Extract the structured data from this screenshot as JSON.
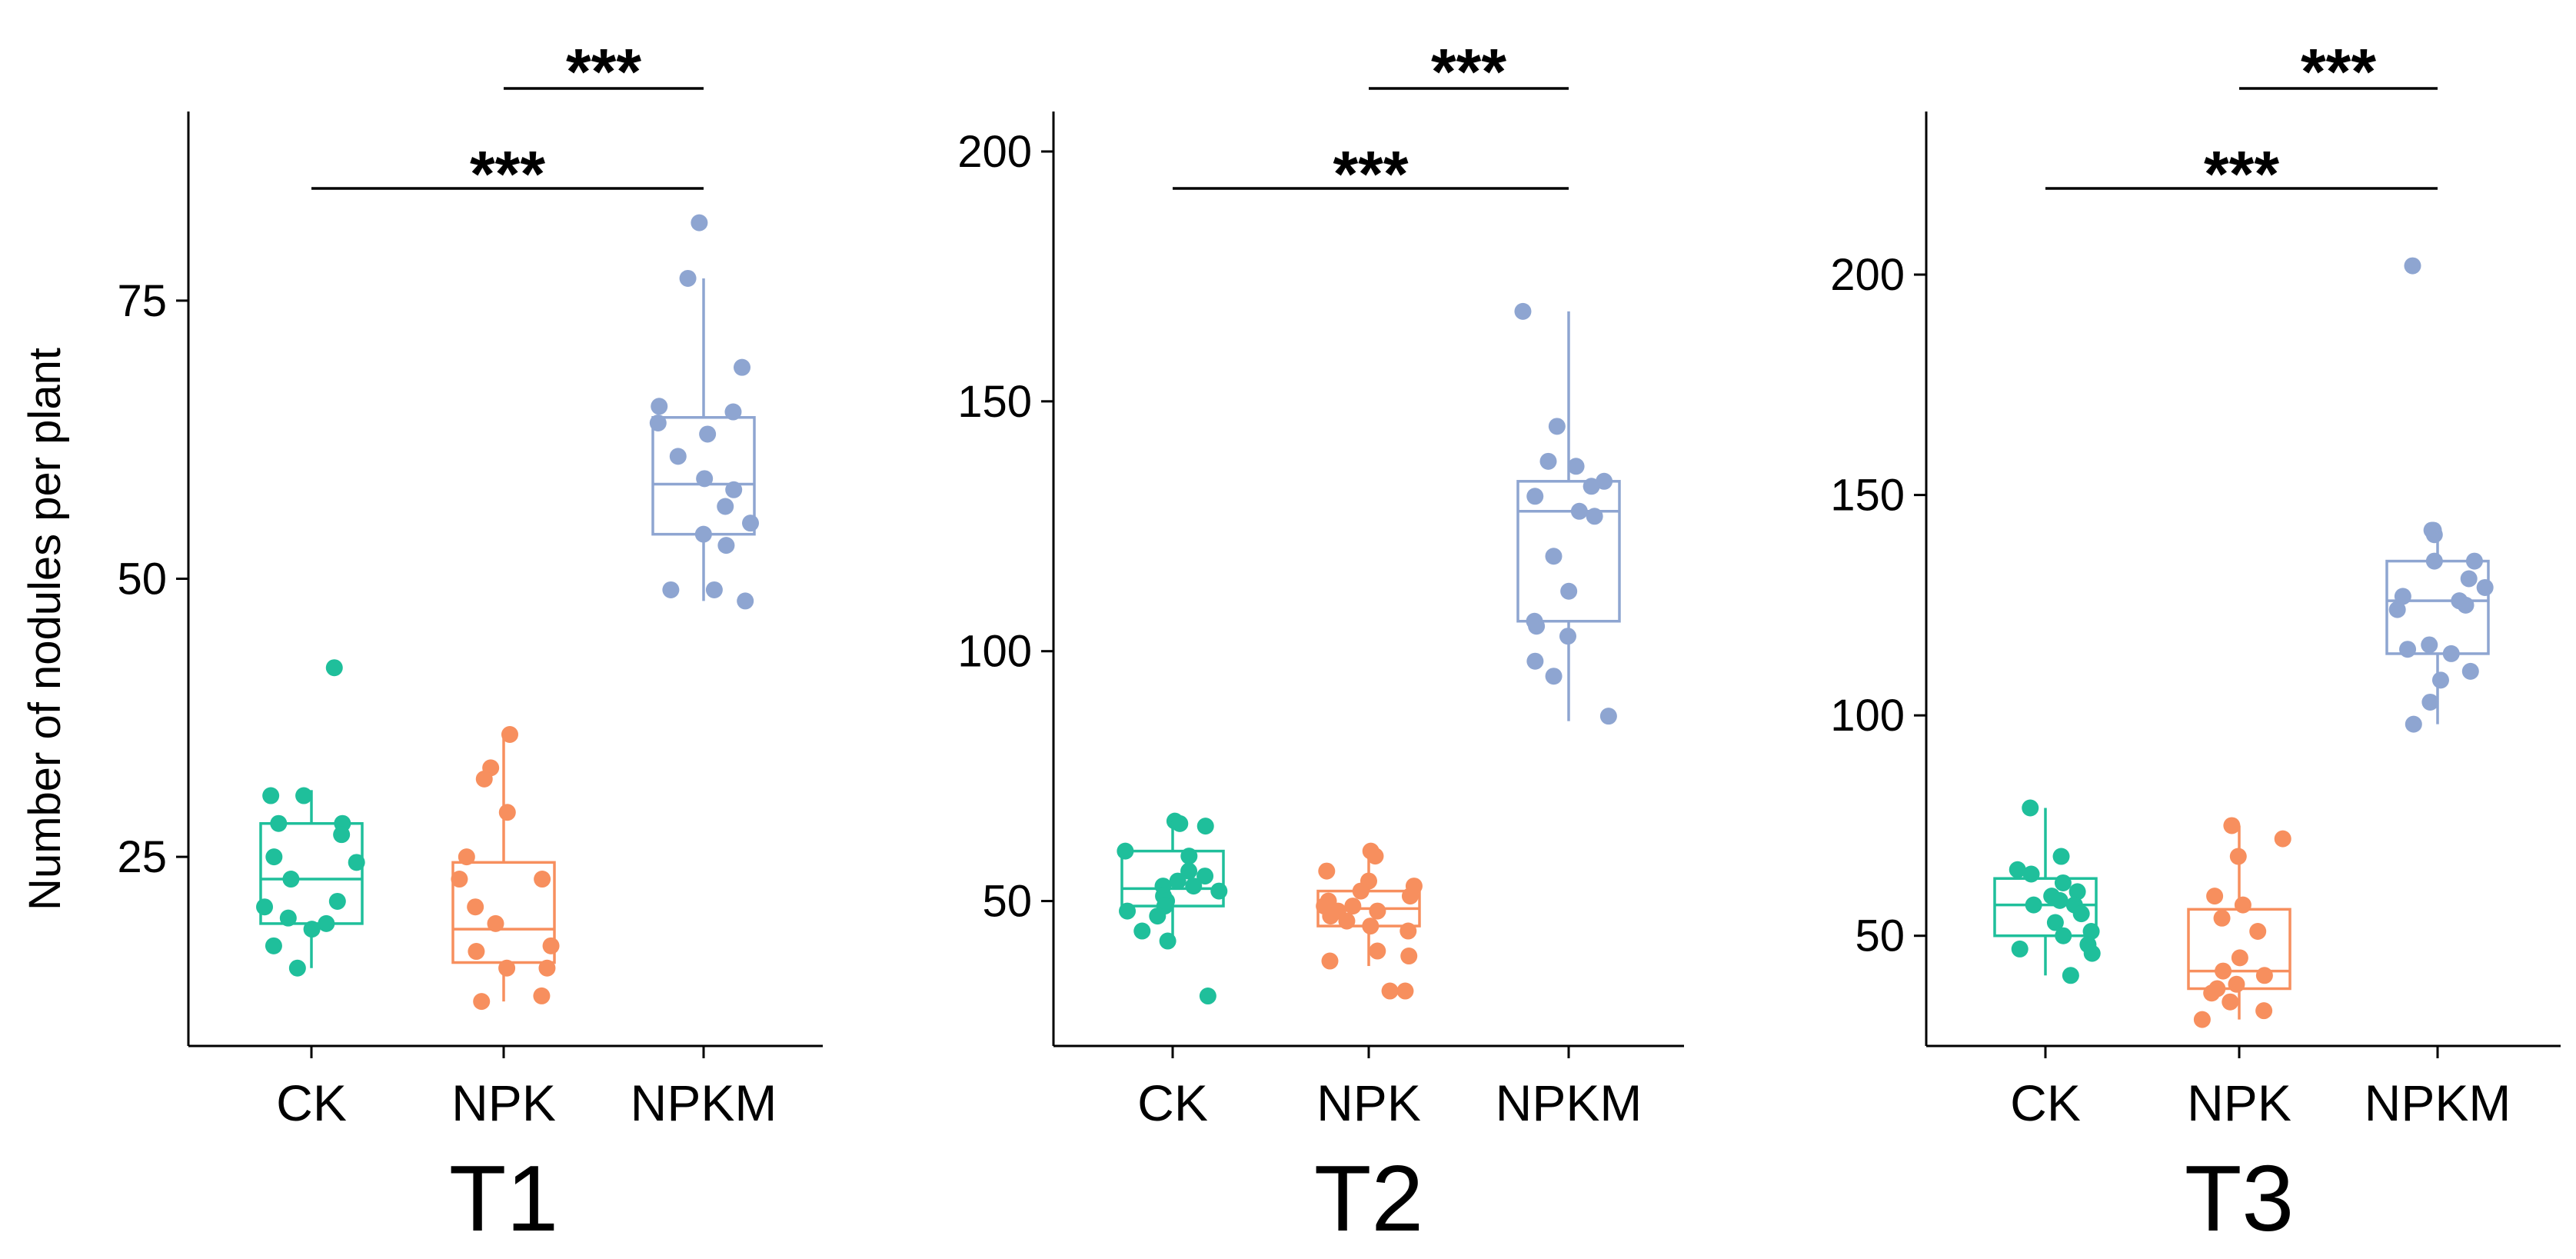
{
  "figure": {
    "ylabel": "Number of nodules per plant",
    "categories": [
      "CK",
      "NPK",
      "NPKM"
    ],
    "colors": {
      "CK": "#1fbf9b",
      "NPK": "#f78f5e",
      "NPKM": "#8ea5d1"
    }
  },
  "chart_data": [
    {
      "type": "boxplot",
      "title": "T1",
      "ylabel": "Number of nodules per plant",
      "ylim": [
        8,
        92
      ],
      "yticks": [
        25,
        50,
        75
      ],
      "categories": [
        "CK",
        "NPK",
        "NPKM"
      ],
      "boxes": [
        {
          "name": "CK",
          "q1": 19,
          "median": 23,
          "q3": 28,
          "whisker_low": 15,
          "whisker_high": 31
        },
        {
          "name": "NPK",
          "q1": 15.5,
          "median": 18.5,
          "q3": 24.5,
          "whisker_low": 12,
          "whisker_high": 36
        },
        {
          "name": "NPKM",
          "q1": 54,
          "median": 58.5,
          "q3": 64.5,
          "whisker_low": 48,
          "whisker_high": 77
        }
      ],
      "points": [
        {
          "name": "CK",
          "values": [
            42,
            30.5,
            30.5,
            28,
            28,
            27,
            25,
            24.5,
            23,
            21,
            20.5,
            19.5,
            19,
            18.5,
            17,
            15
          ]
        },
        {
          "name": "NPK",
          "values": [
            36,
            33,
            32,
            29,
            25,
            23,
            23,
            20.5,
            19,
            17,
            16.5,
            15,
            15,
            12.5,
            12
          ]
        },
        {
          "name": "NPKM",
          "values": [
            82,
            77,
            69,
            65.5,
            65,
            64,
            63,
            61,
            59,
            58,
            56.5,
            55,
            54,
            53,
            49,
            49,
            48
          ]
        }
      ],
      "significance": [
        {
          "from": "NPK",
          "to": "NPKM",
          "label": "***"
        },
        {
          "from": "CK",
          "to": "NPKM",
          "label": "***"
        }
      ]
    },
    {
      "type": "boxplot",
      "title": "T2",
      "ylabel": "",
      "ylim": [
        21,
        208
      ],
      "yticks": [
        50,
        100,
        150,
        200
      ],
      "categories": [
        "CK",
        "NPK",
        "NPKM"
      ],
      "boxes": [
        {
          "name": "CK",
          "q1": 49,
          "median": 52.5,
          "q3": 60,
          "whisker_low": 43,
          "whisker_high": 66
        },
        {
          "name": "NPK",
          "q1": 45,
          "median": 48.5,
          "q3": 52,
          "whisker_low": 37,
          "whisker_high": 60
        },
        {
          "name": "NPKM",
          "q1": 106,
          "median": 128,
          "q3": 134,
          "whisker_low": 86,
          "whisker_high": 168
        }
      ],
      "points": [
        {
          "name": "CK",
          "values": [
            66,
            65.5,
            65,
            60,
            59,
            56,
            55,
            54,
            53,
            53,
            52,
            51,
            50,
            49,
            48,
            47,
            44,
            42,
            31
          ]
        },
        {
          "name": "NPK",
          "values": [
            60,
            59,
            56,
            54,
            53,
            52,
            51,
            50,
            49,
            49,
            48,
            48,
            47,
            46,
            45,
            44,
            40,
            39,
            38,
            32,
            32
          ]
        },
        {
          "name": "NPKM",
          "values": [
            168,
            145,
            138,
            137,
            134,
            133,
            131,
            128,
            127,
            119,
            112,
            106,
            105,
            103,
            98,
            95,
            87
          ]
        }
      ],
      "significance": [
        {
          "from": "NPK",
          "to": "NPKM",
          "label": "***"
        },
        {
          "from": "CK",
          "to": "NPKM",
          "label": "***"
        }
      ]
    },
    {
      "type": "boxplot",
      "title": "T3",
      "ylabel": "",
      "ylim": [
        25,
        237
      ],
      "yticks": [
        50,
        100,
        150,
        200
      ],
      "categories": [
        "CK",
        "NPK",
        "NPKM"
      ],
      "boxes": [
        {
          "name": "CK",
          "q1": 50,
          "median": 57,
          "q3": 63,
          "whisker_low": 41,
          "whisker_high": 79
        },
        {
          "name": "NPK",
          "q1": 38,
          "median": 42,
          "q3": 56,
          "whisker_low": 31,
          "whisker_high": 75
        },
        {
          "name": "NPKM",
          "q1": 114,
          "median": 126,
          "q3": 135,
          "whisker_low": 98,
          "whisker_high": 142
        }
      ],
      "points": [
        {
          "name": "CK",
          "values": [
            79,
            68,
            65,
            64,
            62,
            60,
            59,
            58,
            57,
            57,
            55,
            53,
            51,
            50,
            48,
            47,
            46,
            41
          ]
        },
        {
          "name": "NPK",
          "values": [
            75,
            72,
            68,
            59,
            57,
            54,
            51,
            45,
            42,
            41,
            39,
            38,
            37,
            35,
            33,
            31
          ]
        },
        {
          "name": "NPKM",
          "values": [
            202,
            142,
            142,
            141,
            135,
            135,
            131,
            129,
            127,
            126,
            125,
            124,
            116,
            115,
            114,
            110,
            108,
            103,
            98
          ]
        }
      ],
      "significance": [
        {
          "from": "NPK",
          "to": "NPKM",
          "label": "***"
        },
        {
          "from": "CK",
          "to": "NPKM",
          "label": "***"
        }
      ]
    }
  ]
}
